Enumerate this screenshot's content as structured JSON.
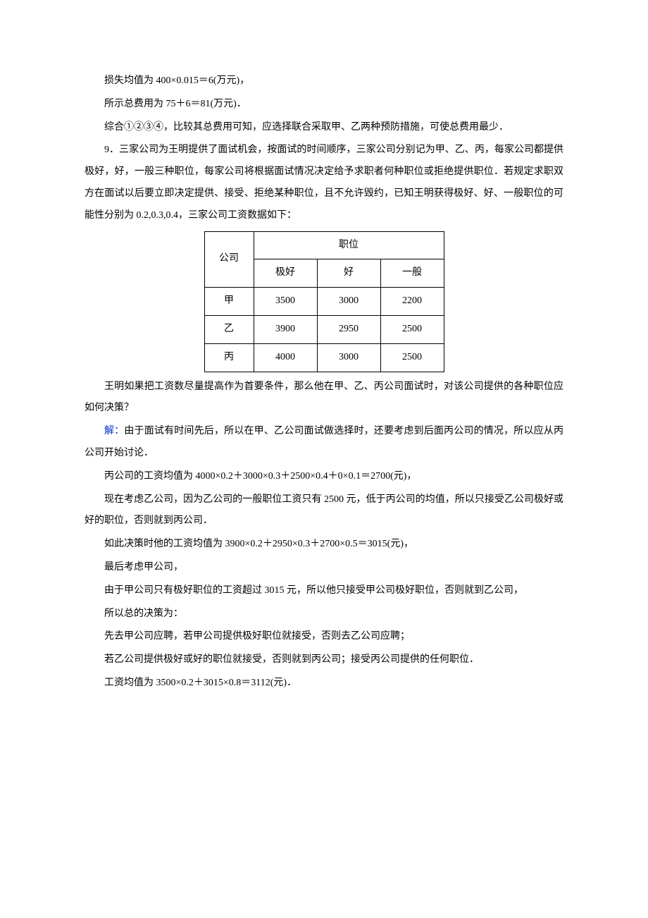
{
  "paragraphs": {
    "p1": "损失均值为 400×0.015＝6(万元)，",
    "p2": "所示总费用为 75＋6＝81(万元)．",
    "p3": "综合①②③④，比较其总费用可知，应选择联合采取甲、乙两种预防措施，可使总费用最少．",
    "p4": "9．三家公司为王明提供了面试机会，按面试的时间顺序，三家公司分别记为甲、乙、丙，每家公司都提供极好，好，一般三种职位，每家公司将根据面试情况决定给予求职者何种职位或拒绝提供职位．若规定求职双方在面试以后要立即决定提供、接受、拒绝某种职位，且不允许毁约，已知王明获得极好、好、一般职位的可能性分别为 0.2,0.3,0.4，三家公司工资数据如下：",
    "p5": "王明如果把工资数尽量提高作为首要条件，那么他在甲、乙、丙公司面试时，对该公司提供的各种职位应如何决策？",
    "solution_label": "解：",
    "p6": "由于面试有时间先后，所以在甲、乙公司面试做选择时，还要考虑到后面丙公司的情况，所以应从丙公司开始讨论．",
    "p7": "丙公司的工资均值为 4000×0.2＋3000×0.3＋2500×0.4＋0×0.1＝2700(元)，",
    "p8": "现在考虑乙公司，因为乙公司的一般职位工资只有 2500 元，低于丙公司的均值，所以只接受乙公司极好或好的职位，否则就到丙公司．",
    "p9": "如此决策时他的工资均值为 3900×0.2＋2950×0.3＋2700×0.5＝3015(元)，",
    "p10": "最后考虑甲公司，",
    "p11": "由于甲公司只有极好职位的工资超过 3015 元，所以他只接受甲公司极好职位，否则就到乙公司，",
    "p12": "所以总的决策为：",
    "p13": "先去甲公司应聘，若甲公司提供极好职位就接受，否则去乙公司应聘；",
    "p14": "若乙公司提供极好或好的职位就接受，否则就到丙公司；接受丙公司提供的任何职位．",
    "p15": "工资均值为 3500×0.2＋3015×0.8＝3112(元)．"
  },
  "table": {
    "header_company": "公司",
    "header_position": "职位",
    "levels": [
      "极好",
      "好",
      "一般"
    ],
    "rows": [
      {
        "company": "甲",
        "values": [
          "3500",
          "3000",
          "2200"
        ]
      },
      {
        "company": "乙",
        "values": [
          "3900",
          "2950",
          "2500"
        ]
      },
      {
        "company": "丙",
        "values": [
          "4000",
          "3000",
          "2500"
        ]
      }
    ]
  },
  "colors": {
    "text": "#000000",
    "solution_label": "#0033cc",
    "background": "#ffffff",
    "table_border": "#000000"
  },
  "typography": {
    "font_family": "SimSun",
    "font_size_pt": 14,
    "line_height": 2.2
  }
}
